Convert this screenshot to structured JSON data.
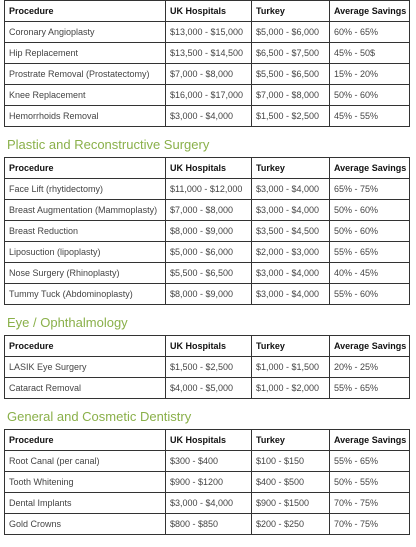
{
  "columns": [
    "Procedure",
    "UK Hospitals",
    "Turkey",
    "Average Savings"
  ],
  "sections": [
    {
      "title": "",
      "rows": [
        [
          "Coronary Angioplasty",
          "$13,000 - $15,000",
          "$5,000 - $6,000",
          "60% - 65%"
        ],
        [
          "Hip Replacement",
          "$13,500 - $14,500",
          "$6,500 - $7,500",
          "45% - 50$"
        ],
        [
          "Prostrate Removal (Prostatectomy)",
          "$7,000 - $8,000",
          "$5,500 - $6,500",
          "15% - 20%"
        ],
        [
          "Knee Replacement",
          "$16,000 - $17,000",
          "$7,000 - $8,000",
          "50% - 60%"
        ],
        [
          "Hemorrhoids Removal",
          "$3,000 - $4,000",
          "$1,500 - $2,500",
          "45% - 55%"
        ]
      ]
    },
    {
      "title": "Plastic and Reconstructive Surgery",
      "rows": [
        [
          "Face Lift (rhytidectomy)",
          "$11,000 - $12,000",
          "$3,000 - $4,000",
          "65% - 75%"
        ],
        [
          "Breast Augmentation (Mammoplasty)",
          "$7,000 - $8,000",
          "$3,000 - $4,000",
          "50% - 60%"
        ],
        [
          "Breast Reduction",
          "$8,000 - $9,000",
          "$3,500 - $4,500",
          "50% - 60%"
        ],
        [
          "Liposuction (lipoplasty)",
          "$5,000 - $6,000",
          "$2,000 - $3,000",
          "55% - 65%"
        ],
        [
          "Nose Surgery (Rhinoplasty)",
          "$5,500 - $6,500",
          "$3,000 - $4,000",
          "40% - 45%"
        ],
        [
          "Tummy Tuck (Abdominoplasty)",
          "$8,000 - $9,000",
          "$3,000 - $4,000",
          "55% - 60%"
        ]
      ]
    },
    {
      "title": "Eye / Ophthalmology",
      "rows": [
        [
          "LASIK Eye Surgery",
          "$1,500 - $2,500",
          "$1,000 - $1,500",
          "20% - 25%"
        ],
        [
          "Cataract Removal",
          "$4,000 - $5,000",
          "$1,000 - $2,000",
          "55% - 65%"
        ]
      ]
    },
    {
      "title": "General and Cosmetic Dentistry",
      "rows": [
        [
          "Root Canal (per canal)",
          "$300 - $400",
          "$100 - $150",
          "55% - 65%"
        ],
        [
          "Tooth Whitening",
          "$900 - $1200",
          "$400 - $500",
          "50% - 55%"
        ],
        [
          "Dental Implants",
          "$3,000 - $4,000",
          "$900 - $1500",
          "70% - 75%"
        ],
        [
          "Gold Crowns",
          "$800 - $850",
          "$200 - $250",
          "70% - 75%"
        ]
      ]
    }
  ],
  "colors": {
    "heading": "#8ab04a",
    "border": "#333333",
    "text": "#444444"
  }
}
